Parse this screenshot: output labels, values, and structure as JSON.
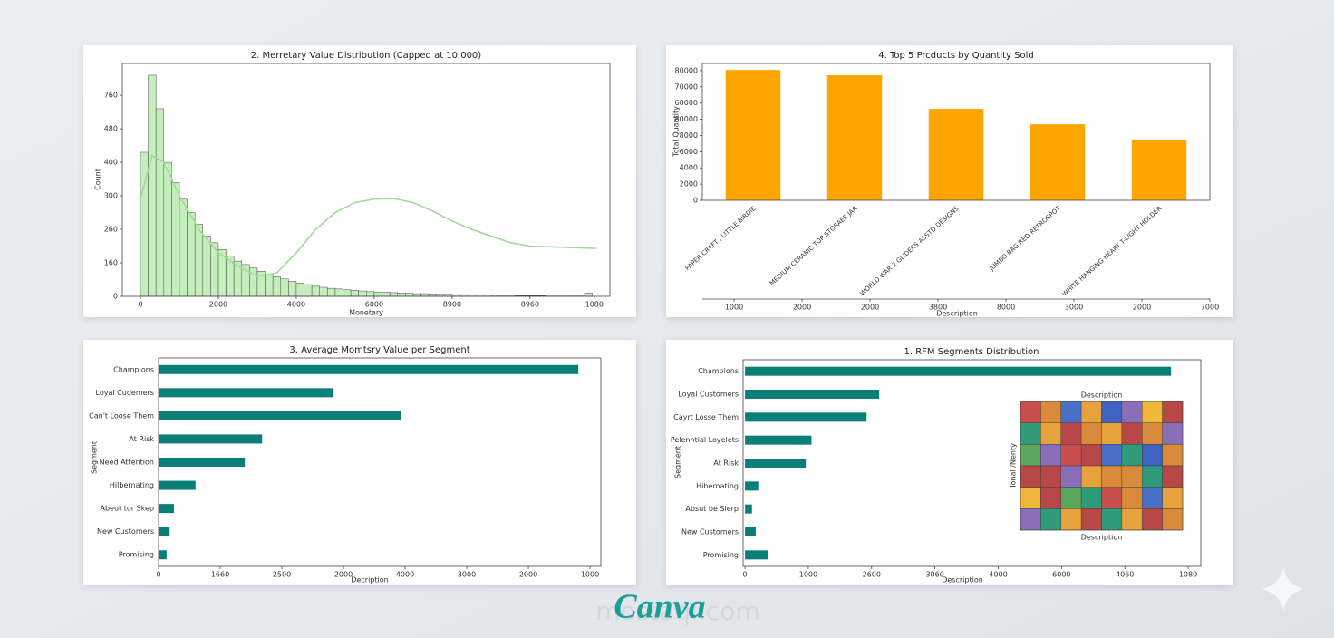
{
  "chart_data": [
    {
      "type": "histogram",
      "title": "2. Merretary Value Distribution (Capped at 10,000)",
      "xlabel": "Monetary",
      "ylabel": "Count",
      "bins": [
        0,
        200,
        400,
        600,
        800,
        1000,
        1200,
        1400,
        1600,
        1800,
        2000,
        2200,
        2400,
        2600,
        2800,
        3000,
        3200,
        3400,
        3600,
        3800,
        4000,
        4200,
        4400,
        4600,
        4800,
        5000,
        5200,
        5400,
        5600,
        5800,
        6000,
        6200,
        6400,
        6600,
        6800,
        7000,
        7200,
        7400,
        7600,
        7800,
        8000,
        8200,
        8400,
        8600,
        8800,
        9000,
        9200,
        9400,
        9600,
        9800,
        10000,
        10200,
        10400,
        10600,
        10800,
        11000,
        11200,
        11400,
        11600
      ],
      "values": [
        430,
        660,
        560,
        400,
        340,
        290,
        250,
        215,
        180,
        160,
        140,
        120,
        105,
        95,
        85,
        75,
        65,
        58,
        52,
        45,
        40,
        35,
        30,
        27,
        24,
        22,
        20,
        18,
        16,
        14,
        13,
        12,
        11,
        10,
        9,
        8,
        8,
        7,
        6,
        6,
        5,
        5,
        4,
        4,
        4,
        3,
        3,
        3,
        2,
        2,
        2,
        2,
        1,
        1,
        1,
        1,
        1,
        10
      ],
      "color": "#c5eebd",
      "edge_color": "#4a4a4a",
      "kde": {
        "color": "#9edc96",
        "x": [
          0,
          300,
          600,
          1000,
          1500,
          2000,
          2500,
          3000,
          3500,
          4000,
          4500,
          5000,
          5500,
          6000,
          6500,
          7000,
          7500,
          8000,
          8500,
          9000,
          9500,
          10000,
          11700
        ],
        "values": [
          290,
          420,
          400,
          300,
          200,
          130,
          90,
          60,
          70,
          130,
          200,
          250,
          280,
          290,
          292,
          280,
          255,
          225,
          200,
          180,
          160,
          150,
          143
        ]
      },
      "xlim": [
        -465,
        12050
      ],
      "xticks": [
        0,
        2000,
        4000,
        6000,
        {
          "value": 8000,
          "label": "8900"
        },
        {
          "value": 10000,
          "label": "8960"
        },
        {
          "value": 11650,
          "label": "1080"
        }
      ],
      "ylim": [
        0,
        695
      ],
      "yticks": [
        0,
        {
          "value": 100,
          "label": "160"
        },
        {
          "value": 200,
          "label": "260"
        },
        300,
        400,
        {
          "value": 500,
          "label": "480"
        },
        {
          "value": 600,
          "label": "760"
        }
      ]
    },
    {
      "type": "bar",
      "title": "4. Top 5 Prcducts by Quantity Sold",
      "xlabel": "Description",
      "ylabel": "Total Quantity",
      "categories": [
        "PAPER CRAFT , LITTLE BIRDIE",
        "MEDIUM CERANIC TOP STORAEE JAR",
        "WORLD WAR 2 GLIDERS ASSTD DESIGNS",
        "JUMBO BAG RED RETROSPOT",
        "WHITE HANGING HEART T-LIGHT HOLDER"
      ],
      "values": [
        80400,
        77100,
        56400,
        46900,
        36900
      ],
      "color": "#ffa500",
      "ylim": [
        0,
        84400
      ],
      "yticks": [
        0,
        {
          "value": 10000,
          "label": "2000"
        },
        {
          "value": 20000,
          "label": "4000"
        },
        {
          "value": 30000,
          "label": "6000"
        },
        {
          "value": 40000,
          "label": "8000"
        },
        {
          "value": 50000,
          "label": "80000"
        },
        60000,
        70000,
        80000
      ],
      "x2lim": [
        0.533,
        8
      ],
      "x2ticks": [
        {
          "value": 1,
          "label": "1000"
        },
        {
          "value": 2,
          "label": "2000"
        },
        {
          "value": 3,
          "label": "2000"
        },
        {
          "value": 4,
          "label": "3800"
        },
        {
          "value": 5,
          "label": "8000"
        },
        {
          "value": 6,
          "label": "3000"
        },
        {
          "value": 7,
          "label": "2000"
        },
        {
          "value": 8,
          "label": "7000"
        }
      ]
    },
    {
      "type": "barh",
      "title": "3. Average Momtsry Value per Segment",
      "xlabel": "Decription",
      "ylabel": "Segment",
      "categories": [
        "Champions",
        "Loyal Cudemers",
        "Can't Loose Them",
        "At Risk",
        "Need Attention",
        "Hilbernating",
        "Abeut tor Skep",
        "New Customers",
        "Promising"
      ],
      "values": [
        6810,
        2840,
        3940,
        1680,
        1400,
        600,
        250,
        180,
        130
      ],
      "color": "#0a7f78",
      "xlim": [
        0,
        7176
      ],
      "xticks": [
        0,
        {
          "value": 1000,
          "label": "1660"
        },
        {
          "value": 2000,
          "label": "2500"
        },
        {
          "value": 3000,
          "label": "2000"
        },
        4000,
        {
          "value": 5000,
          "label": "3000"
        },
        {
          "value": 6000,
          "label": "2000"
        },
        {
          "value": 7000,
          "label": "1000"
        }
      ]
    },
    {
      "type": "barh",
      "title": "1. RFM Segments Distribution",
      "xlabel": "Description",
      "ylabel": "Segment",
      "categories": [
        "Champions",
        "Loyal Customers",
        "Cayrt Losse Them",
        "Pelenntial Loyelets",
        "At Risk",
        "Hibernating",
        "Absut be Slerp",
        "New Customers",
        "Promising"
      ],
      "values": [
        6730,
        2120,
        1920,
        1050,
        960,
        210,
        110,
        170,
        370
      ],
      "color": "#0a7f78",
      "xlim": [
        -30,
        7200
      ],
      "xticks": [
        0,
        1000,
        {
          "value": 2000,
          "label": "2600"
        },
        {
          "value": 3000,
          "label": "3060"
        },
        4000,
        {
          "value": 5000,
          "label": "6000"
        },
        {
          "value": 6000,
          "label": "4060"
        },
        {
          "value": 7000,
          "label": "1080"
        }
      ],
      "inset": {
        "title": "Description",
        "xlabel": "Description",
        "ylabel": "Tonal /Nenty"
      }
    }
  ],
  "watermark": {
    "brand": "Canva",
    "site": "mostaql.com"
  }
}
